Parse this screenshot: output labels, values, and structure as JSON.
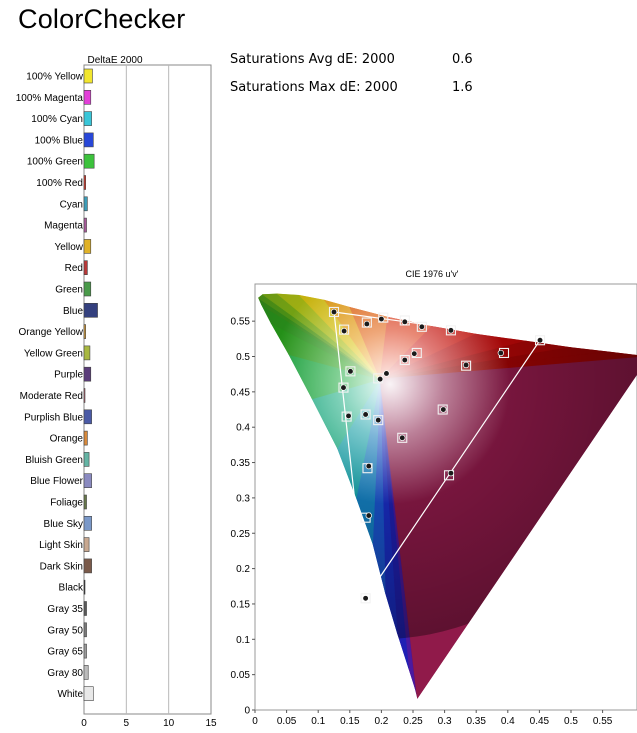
{
  "page": {
    "title": "ColorChecker"
  },
  "stats": [
    {
      "label": "Saturations Avg dE:  2000",
      "value": "0.6"
    },
    {
      "label": "Saturations Max dE: 2000",
      "value": "1.6"
    }
  ],
  "chart_data": [
    {
      "type": "bar",
      "orientation": "horizontal",
      "title": "DeltaE 2000",
      "xlim": [
        0,
        15
      ],
      "xticks": [
        0,
        5,
        10,
        15
      ],
      "grid": true,
      "categories": [
        "100% Yellow",
        "100% Magenta",
        "100% Cyan",
        "100% Blue",
        "100% Green",
        "100% Red",
        "Cyan",
        "Magenta",
        "Yellow",
        "Red",
        "Green",
        "Blue",
        "Orange Yellow",
        "Yellow Green",
        "Purple",
        "Moderate Red",
        "Purplish Blue",
        "Orange",
        "Bluish Green",
        "Blue Flower",
        "Foliage",
        "Blue Sky",
        "Light Skin",
        "Dark Skin",
        "Black",
        "Gray 35",
        "Gray 50",
        "Gray 65",
        "Gray 80",
        "White"
      ],
      "values": [
        1.0,
        0.8,
        0.9,
        1.1,
        1.2,
        0.2,
        0.4,
        0.3,
        0.8,
        0.4,
        0.8,
        1.6,
        0.2,
        0.7,
        0.8,
        0.1,
        0.9,
        0.4,
        0.6,
        0.9,
        0.3,
        0.9,
        0.6,
        0.9,
        0.1,
        0.3,
        0.3,
        0.3,
        0.5,
        1.1
      ],
      "colors": [
        "#f2e62e",
        "#e23fd8",
        "#39c6d8",
        "#2847d8",
        "#3cc23c",
        "#d83a2a",
        "#3d9db8",
        "#a85a9a",
        "#e0b228",
        "#b83838",
        "#4a9a4a",
        "#34407e",
        "#d8a040",
        "#a8b840",
        "#5a3c7a",
        "#c86070",
        "#4a5aa6",
        "#d88a3c",
        "#64b4a4",
        "#8a8ac0",
        "#68784a",
        "#7a98c8",
        "#c8a890",
        "#7a5a4a",
        "#2a2a2a",
        "#5a5a5a",
        "#7a7a7a",
        "#9a9a9a",
        "#bcbcbc",
        "#e8e8e8"
      ]
    },
    {
      "type": "scatter",
      "title": "CIE 1976 u'v'",
      "xlim": [
        0,
        0.6
      ],
      "ylim": [
        0,
        0.6
      ],
      "xticks": [
        0,
        0.05,
        0.1,
        0.15,
        0.2,
        0.25,
        0.3,
        0.35,
        0.4,
        0.45,
        0.5,
        0.55
      ],
      "yticks": [
        0,
        0.05,
        0.1,
        0.15,
        0.2,
        0.25,
        0.3,
        0.35,
        0.4,
        0.45,
        0.5,
        0.55
      ],
      "gamut_triangle": [
        [
          0.451,
          0.523
        ],
        [
          0.125,
          0.563
        ],
        [
          0.175,
          0.158
        ]
      ],
      "white_point": [
        0.198,
        0.468
      ],
      "series": [
        {
          "values": [
            [
              0.451,
              0.523
            ],
            [
              0.125,
              0.563
            ],
            [
              0.175,
              0.158
            ],
            [
              0.394,
              0.505
            ],
            [
              0.334,
              0.487
            ],
            [
              0.297,
              0.425
            ],
            [
              0.31,
              0.537
            ],
            [
              0.264,
              0.542
            ],
            [
              0.237,
              0.551
            ],
            [
              0.203,
              0.555
            ],
            [
              0.256,
              0.505
            ],
            [
              0.237,
              0.495
            ],
            [
              0.177,
              0.548
            ],
            [
              0.141,
              0.538
            ],
            [
              0.151,
              0.479
            ],
            [
              0.14,
              0.456
            ],
            [
              0.145,
              0.415
            ],
            [
              0.175,
              0.418
            ],
            [
              0.195,
              0.41
            ],
            [
              0.233,
              0.385
            ],
            [
              0.307,
              0.332
            ],
            [
              0.178,
              0.342
            ],
            [
              0.175,
              0.272
            ],
            [
              0.195,
              0.469
            ]
          ]
        },
        {
          "values": [
            [
              0.451,
              0.523
            ],
            [
              0.125,
              0.563
            ],
            [
              0.175,
              0.158
            ],
            [
              0.389,
              0.505
            ],
            [
              0.334,
              0.488
            ],
            [
              0.298,
              0.425
            ],
            [
              0.31,
              0.537
            ],
            [
              0.264,
              0.542
            ],
            [
              0.237,
              0.549
            ],
            [
              0.2,
              0.553
            ],
            [
              0.252,
              0.504
            ],
            [
              0.237,
              0.495
            ],
            [
              0.177,
              0.546
            ],
            [
              0.141,
              0.536
            ],
            [
              0.151,
              0.479
            ],
            [
              0.14,
              0.456
            ],
            [
              0.148,
              0.416
            ],
            [
              0.175,
              0.418
            ],
            [
              0.195,
              0.41
            ],
            [
              0.233,
              0.385
            ],
            [
              0.31,
              0.335
            ],
            [
              0.18,
              0.345
            ],
            [
              0.18,
              0.275
            ],
            [
              0.198,
              0.468
            ],
            [
              0.208,
              0.476
            ]
          ]
        }
      ]
    }
  ]
}
